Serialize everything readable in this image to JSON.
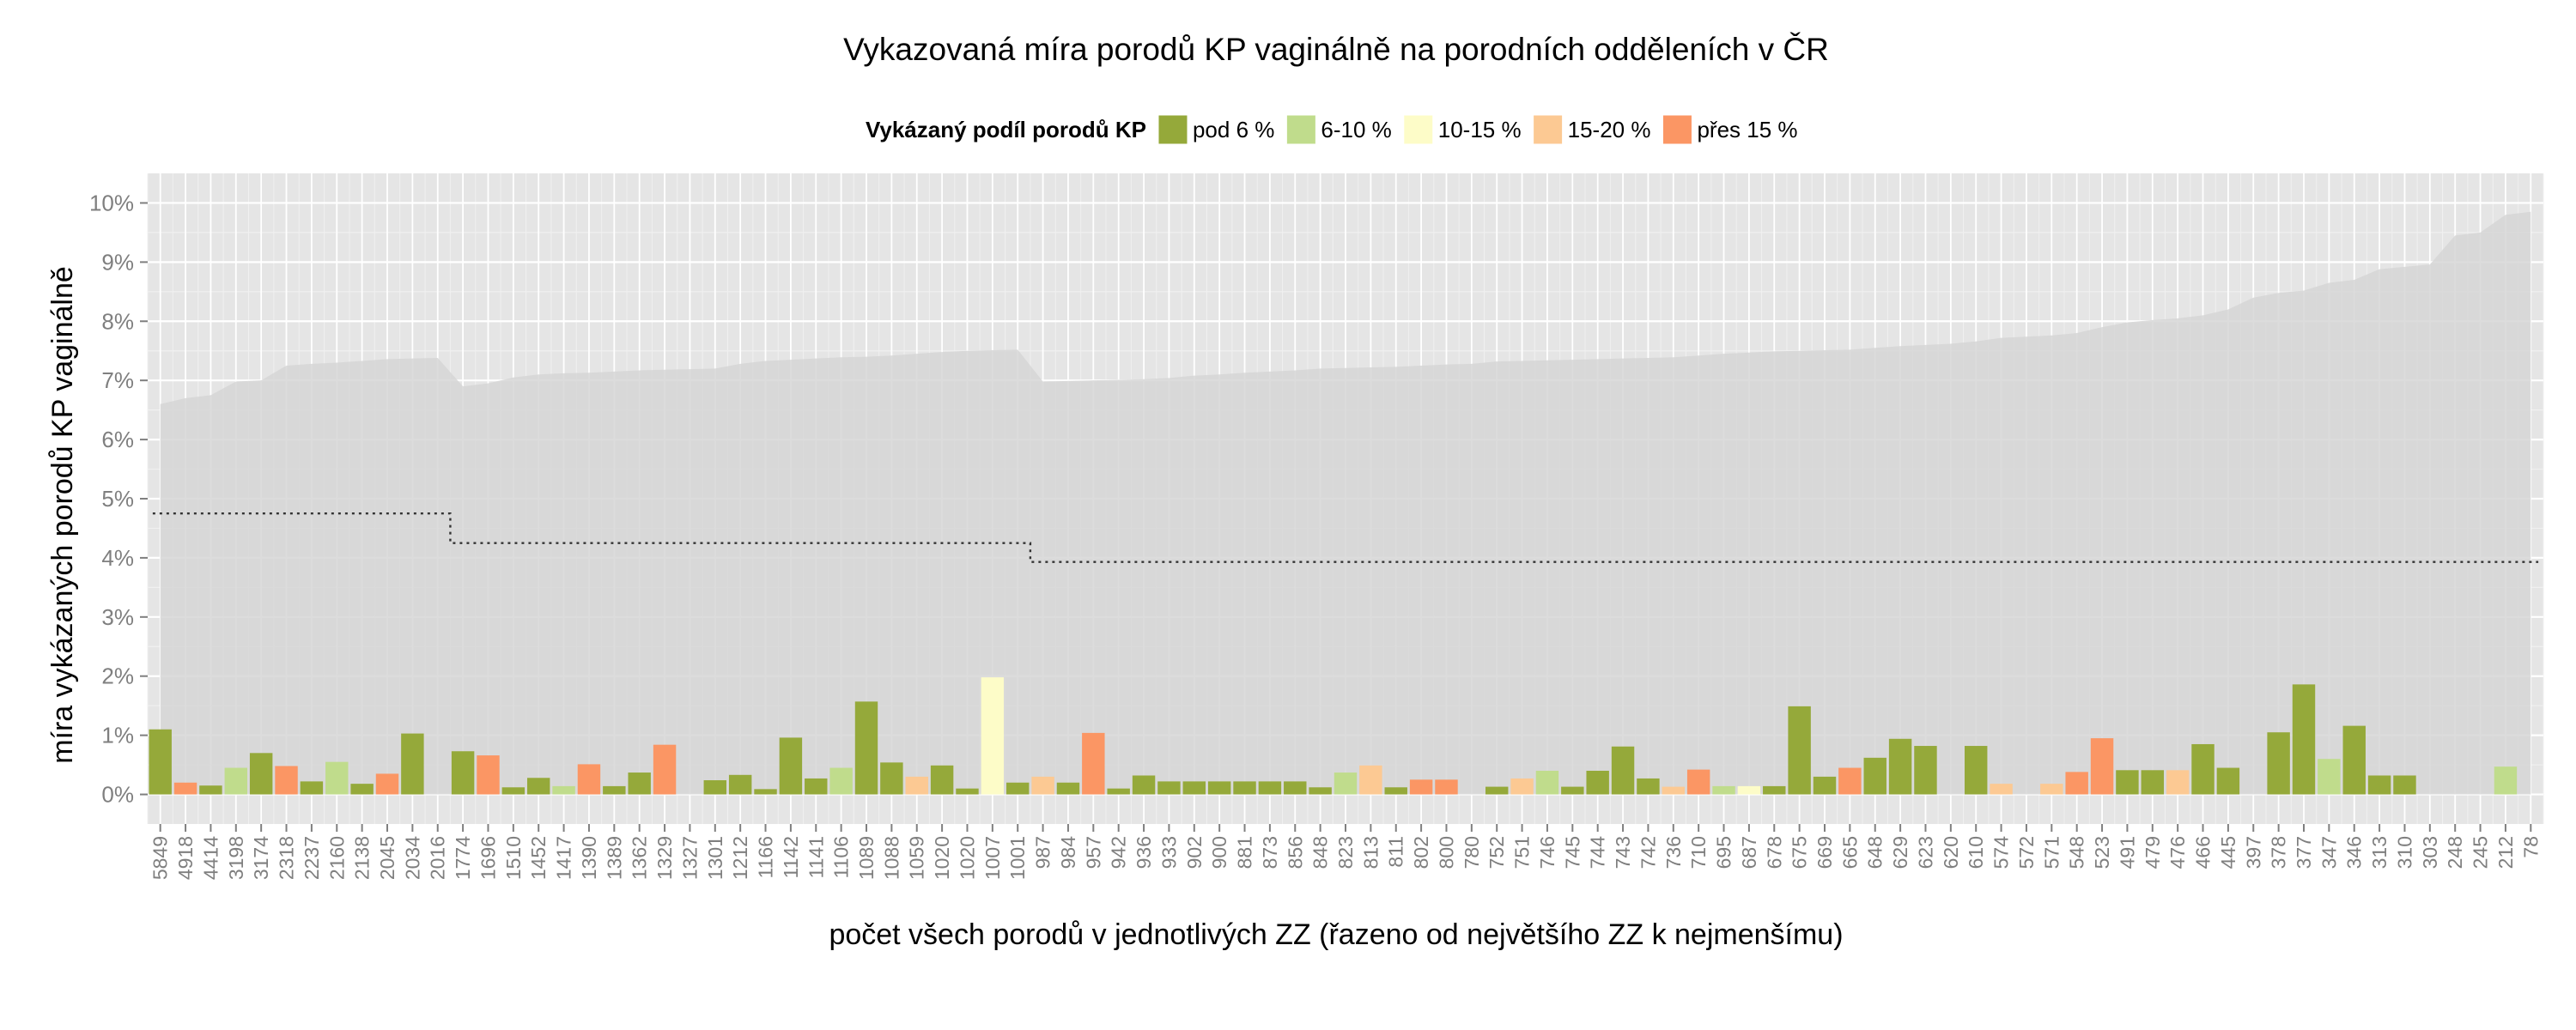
{
  "chart_data": {
    "type": "bar",
    "title": "Vykazovaná míra porodů KP vaginálně na porodních odděleních v ČR",
    "xlabel": "počet všech porodů v jednotlivých ZZ (řazeno od největšího ZZ k nejmenšímu)",
    "ylabel": "míra vykázaných porodů KP vaginálně",
    "ylim": [
      -0.5,
      10.5
    ],
    "y_ticks": [
      0,
      1,
      2,
      3,
      4,
      5,
      6,
      7,
      8,
      9,
      10
    ],
    "y_tick_labels": [
      "0%",
      "1%",
      "2%",
      "3%",
      "4%",
      "5%",
      "6%",
      "7%",
      "8%",
      "9%",
      "10%"
    ],
    "grid": true,
    "legend": {
      "position": "top",
      "title": "Vykázaný podíl porodů KP",
      "items": [
        {
          "key": "g1",
          "label": "pod 6 %",
          "color": "#95a93a"
        },
        {
          "key": "g2",
          "label": "6-10 %",
          "color": "#c0dc8c"
        },
        {
          "key": "g3",
          "label": "10-15 %",
          "color": "#fdfcc8"
        },
        {
          "key": "g4",
          "label": "15-20 %",
          "color": "#fcc993"
        },
        {
          "key": "g5",
          "label": "přes 15 %",
          "color": "#fb9664"
        }
      ]
    },
    "categories": [
      "5849",
      "4918",
      "4414",
      "3198",
      "3174",
      "2318",
      "2237",
      "2160",
      "2138",
      "2045",
      "2034",
      "2016",
      "1774",
      "1696",
      "1510",
      "1452",
      "1417",
      "1390",
      "1389",
      "1362",
      "1329",
      "1327",
      "1301",
      "1212",
      "1166",
      "1142",
      "1141",
      "1106",
      "1089",
      "1088",
      "1059",
      "1020",
      "1020",
      "1007",
      "1001",
      "987",
      "984",
      "957",
      "942",
      "936",
      "933",
      "902",
      "900",
      "881",
      "873",
      "856",
      "848",
      "823",
      "813",
      "811",
      "802",
      "800",
      "780",
      "752",
      "751",
      "746",
      "745",
      "744",
      "743",
      "742",
      "736",
      "710",
      "695",
      "687",
      "678",
      "675",
      "669",
      "665",
      "648",
      "629",
      "623",
      "620",
      "610",
      "574",
      "572",
      "571",
      "548",
      "523",
      "491",
      "479",
      "476",
      "466",
      "445",
      "397",
      "378",
      "377",
      "347",
      "346",
      "313",
      "310",
      "303",
      "248",
      "245",
      "212",
      "78"
    ],
    "values": [
      1.1,
      0.2,
      0.15,
      0.45,
      0.7,
      0.48,
      0.22,
      0.55,
      0.18,
      0.35,
      1.03,
      0,
      0.73,
      0.66,
      0.12,
      0.28,
      0.14,
      0.51,
      0.14,
      0.37,
      0.84,
      0,
      0.24,
      0.33,
      0.09,
      0.96,
      0.27,
      0.45,
      1.57,
      0.54,
      0.3,
      0.49,
      0.1,
      1.98,
      0.2,
      0.3,
      0.2,
      1.04,
      0.1,
      0.32,
      0.22,
      0.22,
      0.22,
      0.22,
      0.22,
      0.22,
      0.12,
      0.37,
      0.49,
      0.12,
      0.25,
      0.25,
      0,
      0.13,
      0.27,
      0.4,
      0.13,
      0.4,
      0.81,
      0.27,
      0.13,
      0.42,
      0.14,
      0.14,
      0.14,
      1.49,
      0.3,
      0.45,
      0.62,
      0.94,
      0.82,
      0,
      0.82,
      0.18,
      0,
      0.18,
      0.38,
      0.95,
      0.41,
      0.41,
      0.41,
      0.85,
      0.45,
      0,
      1.05,
      1.86,
      0.6,
      1.16,
      0.32,
      0.32,
      0,
      0,
      0,
      0.47,
      0
    ],
    "groups": [
      "g1",
      "g5",
      "g1",
      "g2",
      "g1",
      "g5",
      "g1",
      "g2",
      "g1",
      "g5",
      "g1",
      "g1",
      "g1",
      "g5",
      "g1",
      "g1",
      "g2",
      "g5",
      "g1",
      "g1",
      "g5",
      "g1",
      "g1",
      "g1",
      "g1",
      "g1",
      "g1",
      "g2",
      "g1",
      "g1",
      "g4",
      "g1",
      "g1",
      "g3",
      "g1",
      "g4",
      "g1",
      "g5",
      "g1",
      "g1",
      "g1",
      "g1",
      "g1",
      "g1",
      "g1",
      "g1",
      "g1",
      "g2",
      "g4",
      "g1",
      "g5",
      "g5",
      "g1",
      "g1",
      "g4",
      "g2",
      "g1",
      "g1",
      "g1",
      "g1",
      "g4",
      "g5",
      "g2",
      "g3",
      "g1",
      "g1",
      "g1",
      "g5",
      "g1",
      "g1",
      "g1",
      "g1",
      "g1",
      "g4",
      "g1",
      "g4",
      "g5",
      "g5",
      "g1",
      "g1",
      "g4",
      "g1",
      "g1",
      "g1",
      "g1",
      "g1",
      "g2",
      "g1",
      "g1",
      "g1",
      "g1",
      "g1",
      "g1",
      "g2",
      "g1"
    ],
    "upper_band": [
      6.6,
      6.7,
      6.75,
      6.98,
      7.0,
      7.25,
      7.28,
      7.3,
      7.33,
      7.36,
      7.37,
      7.38,
      6.9,
      6.95,
      7.05,
      7.1,
      7.12,
      7.13,
      7.15,
      7.17,
      7.18,
      7.19,
      7.2,
      7.28,
      7.33,
      7.35,
      7.37,
      7.39,
      7.4,
      7.42,
      7.45,
      7.48,
      7.5,
      7.51,
      7.52,
      6.98,
      6.99,
      7.0,
      7.01,
      7.02,
      7.04,
      7.08,
      7.1,
      7.13,
      7.15,
      7.17,
      7.2,
      7.21,
      7.22,
      7.23,
      7.25,
      7.27,
      7.28,
      7.32,
      7.33,
      7.34,
      7.35,
      7.36,
      7.37,
      7.38,
      7.39,
      7.42,
      7.45,
      7.47,
      7.49,
      7.5,
      7.51,
      7.52,
      7.55,
      7.58,
      7.6,
      7.62,
      7.66,
      7.72,
      7.74,
      7.76,
      7.8,
      7.9,
      7.98,
      8.02,
      8.05,
      8.1,
      8.2,
      8.4,
      8.48,
      8.52,
      8.65,
      8.7,
      8.88,
      8.92,
      8.96,
      9.45,
      9.5,
      9.8,
      9.85
    ],
    "reference_line": [
      4.75,
      4.75,
      4.75,
      4.75,
      4.75,
      4.75,
      4.75,
      4.75,
      4.75,
      4.75,
      4.75,
      4.75,
      4.25,
      4.25,
      4.25,
      4.25,
      4.25,
      4.25,
      4.25,
      4.25,
      4.25,
      4.25,
      4.25,
      4.25,
      4.25,
      4.25,
      4.25,
      4.25,
      4.25,
      4.25,
      4.25,
      4.25,
      4.25,
      4.25,
      4.25,
      3.93,
      3.93,
      3.93,
      3.93,
      3.93,
      3.93,
      3.93,
      3.93,
      3.93,
      3.93,
      3.93,
      3.93,
      3.93,
      3.93,
      3.93,
      3.93,
      3.93,
      3.93,
      3.93,
      3.93,
      3.93,
      3.93,
      3.93,
      3.93,
      3.93,
      3.93,
      3.93,
      3.93,
      3.93,
      3.93,
      3.93,
      3.93,
      3.93,
      3.93,
      3.93,
      3.93,
      3.93,
      3.93,
      3.93,
      3.93,
      3.93,
      3.93,
      3.93,
      3.93,
      3.93,
      3.93,
      3.93,
      3.93,
      3.93,
      3.93,
      3.93,
      3.93,
      3.93,
      3.93,
      3.93,
      3.93,
      3.93,
      3.93,
      3.93,
      3.93
    ],
    "colors": {
      "panel_bg": "#e5e5e5",
      "band": "#d6d6d6",
      "grid_major": "#ffffff",
      "grid_minor": "#f0f0f0",
      "reference_line": "#333333"
    }
  }
}
